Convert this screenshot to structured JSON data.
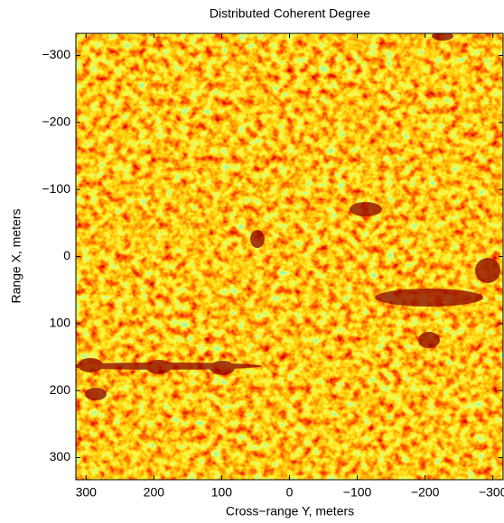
{
  "chart_data": {
    "type": "heatmap",
    "title": "Distributed Coherent Degree",
    "x_label": "Cross−range Y, meters",
    "y_label": "Range X, meters",
    "xlim": [
      315,
      -315
    ],
    "ylim": [
      -333,
      333
    ],
    "xticks": [
      300,
      200,
      100,
      0,
      {
        "value": -100,
        "label": "−100"
      },
      {
        "value": -200,
        "label": "−200"
      },
      {
        "value": -300,
        "label": "−300"
      }
    ],
    "yticks": [
      {
        "value": -300,
        "label": "−300"
      },
      {
        "value": -200,
        "label": "−200"
      },
      {
        "value": -100,
        "label": "−100"
      },
      0,
      100,
      200,
      300
    ]
  }
}
